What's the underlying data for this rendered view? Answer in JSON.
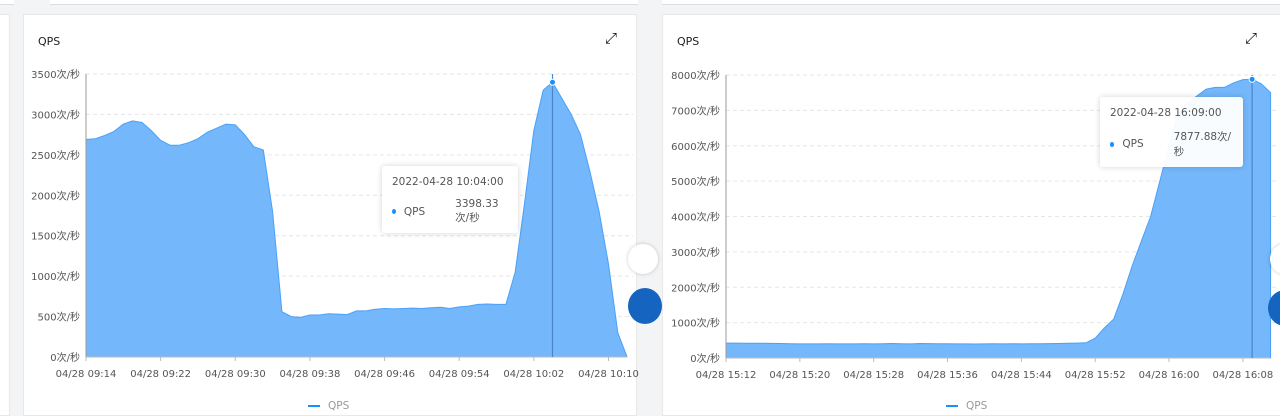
{
  "colors": {
    "area": "#74b7fb",
    "line": "#4aa1f8",
    "dot": "#1890ff",
    "grid": "#e6e6e6"
  },
  "charts": [
    {
      "title": "QPS",
      "expand_icon": "expand-icon",
      "tooltip": {
        "time": "2022-04-28 10:04:00",
        "series": "QPS",
        "value": "3398.33次/秒"
      },
      "legend": "QPS",
      "chart_data": {
        "type": "area",
        "ylim": [
          0,
          3500
        ],
        "grid": true,
        "legend": "bottom",
        "yticks": [
          "0次/秒",
          "500次/秒",
          "1000次/秒",
          "1500次/秒",
          "2000次/秒",
          "2500次/秒",
          "3000次/秒",
          "3500次/秒"
        ],
        "xticks": [
          "04/28 09:14",
          "04/28 09:22",
          "04/28 09:30",
          "04/28 09:38",
          "04/28 09:46",
          "04/28 09:54",
          "04/28 10:02",
          "04/28 10:10"
        ],
        "start": "09:14",
        "highlight": "10:04",
        "series": [
          {
            "name": "QPS",
            "values": [
              2690,
              2700,
              2740,
              2790,
              2880,
              2920,
              2900,
              2800,
              2680,
              2620,
              2620,
              2650,
              2700,
              2780,
              2830,
              2880,
              2870,
              2750,
              2600,
              2560,
              1800,
              560,
              500,
              490,
              520,
              520,
              535,
              530,
              525,
              570,
              570,
              590,
              600,
              595,
              600,
              605,
              600,
              610,
              615,
              600,
              620,
              630,
              650,
              655,
              650,
              650,
              1050,
              1900,
              2800,
              3300,
              3398.33,
              3200,
              3000,
              2750,
              2300,
              1800,
              1150,
              300,
              0
            ]
          }
        ]
      }
    },
    {
      "title": "QPS",
      "expand_icon": "expand-icon",
      "tooltip": {
        "time": "2022-04-28 16:09:00",
        "series": "QPS",
        "value": "7877.88次/秒"
      },
      "legend": "QPS",
      "chart_data": {
        "type": "area",
        "ylim": [
          0,
          8000
        ],
        "grid": true,
        "legend": "bottom",
        "yticks": [
          "0次/秒",
          "1000次/秒",
          "2000次/秒",
          "3000次/秒",
          "4000次/秒",
          "5000次/秒",
          "6000次/秒",
          "7000次/秒",
          "8000次/秒"
        ],
        "xticks": [
          "04/28 15:12",
          "04/28 15:20",
          "04/28 15:28",
          "04/28 15:36",
          "04/28 15:44",
          "04/28 15:52",
          "04/28 16:00",
          "04/28 16:08"
        ],
        "start": "15:12",
        "highlight": "16:09",
        "series": [
          {
            "name": "QPS",
            "values": [
              420,
              420,
              418,
              415,
              415,
              412,
              410,
              405,
              400,
              400,
              400,
              402,
              400,
              398,
              400,
              402,
              400,
              405,
              410,
              405,
              400,
              410,
              408,
              405,
              402,
              400,
              400,
              395,
              400,
              402,
              400,
              405,
              400,
              402,
              405,
              408,
              410,
              415,
              420,
              430,
              560,
              850,
              1100,
              1800,
              2600,
              3300,
              4000,
              5000,
              6000,
              6900,
              7200,
              7400,
              7600,
              7650,
              7650,
              7780,
              7870,
              7877.88,
              7750,
              7500
            ]
          }
        ]
      }
    }
  ]
}
